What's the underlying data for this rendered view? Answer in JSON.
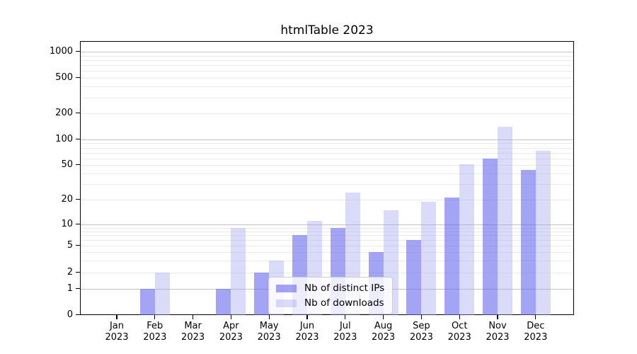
{
  "chart_data": {
    "type": "bar",
    "title": "htmlTable 2023",
    "categories": [
      "Jan",
      "Feb",
      "Mar",
      "Apr",
      "May",
      "Jun",
      "Jul",
      "Aug",
      "Sep",
      "Oct",
      "Nov",
      "Dec"
    ],
    "category_year": "2023",
    "series": [
      {
        "name": "Nb of distinct IPs",
        "color": "rgba(98,98,238,0.58)",
        "values": [
          0,
          1,
          0,
          1,
          2,
          7,
          9,
          4,
          6,
          21,
          60,
          44
        ]
      },
      {
        "name": "Nb of downloads",
        "color": "rgba(163,163,241,0.40)",
        "values": [
          0,
          2,
          0,
          9,
          3,
          11,
          24,
          15,
          19,
          51,
          140,
          73
        ]
      }
    ],
    "yscale": "symlog",
    "ylim": [
      0,
      1000
    ],
    "y_ticks": [
      0,
      1,
      2,
      5,
      10,
      20,
      50,
      100,
      200,
      500,
      1000
    ],
    "grid": {
      "major_color": "#c2c2c2",
      "minor_color": "#ebebeb"
    },
    "legend_position": "inside-bottom-center",
    "background_color": "#ffffff",
    "axis_color": "#000000"
  }
}
